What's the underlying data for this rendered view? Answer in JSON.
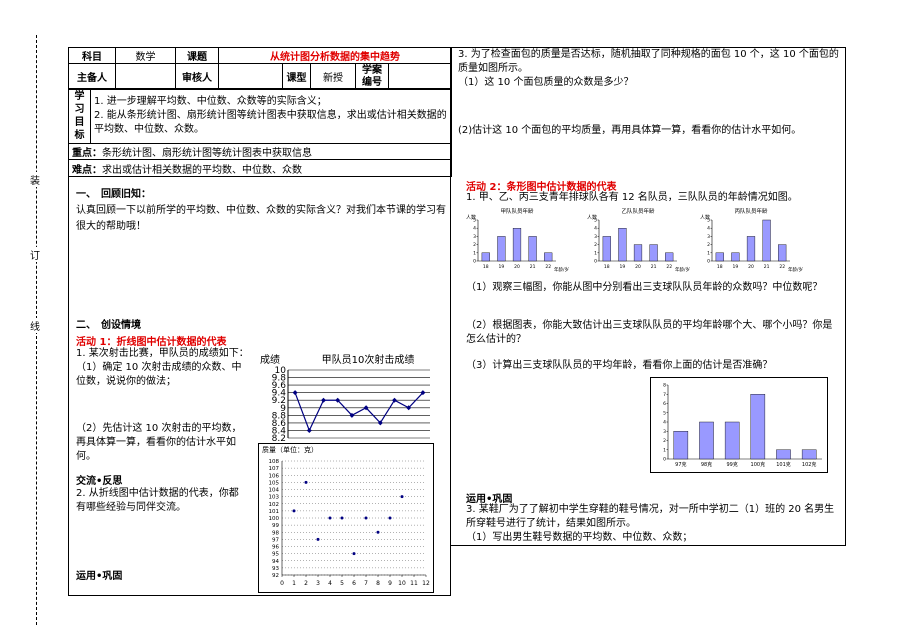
{
  "binding_marks": [
    "装",
    "订",
    "线"
  ],
  "table": {
    "subject_label": "科目",
    "subject": "数学",
    "topic_label": "课题",
    "topic": "从统计图分析数据的集中趋势",
    "preparer_label": "主备人",
    "reviewer_label": "审核人",
    "lesson_type_label": "课型",
    "lesson_type": "新授",
    "plan_no_label": "学案编号",
    "goals_label": "学习目标",
    "goals": [
      "1. 进一步理解平均数、中位数、众数等的实际含义；",
      "2. 能从条形统计图、扇形统计图等统计图表中获取信息，求出或估计相关数据的平均数、中位数、众数。"
    ],
    "key_label": "重点：",
    "key_text": "条形统计图、扇形统计图等统计图表中获取信息",
    "difficulty_label": "难点：",
    "difficulty_text": "求出或估计相关数据的平均数、中位数、众数"
  },
  "left": {
    "section1": "一、　回顾旧知：",
    "review": "认真回顾一下以前所学的平均数、中位数、众数的实际含义？对我们本节课的学习有很大的帮助哦！",
    "section2": "二、　创设情境",
    "activity1": "活动 1：折线图中估计数据的代表",
    "q1": "1. 某次射击比赛，甲队员的成绩如下：",
    "q1_1": "（1）确定 10 次射击成绩的众数、中位数，说说你的做法；",
    "q1_2": "（2）先估计这 10 次射击的平均数，再具体算一算，看看你的估计水平如何。",
    "reflect": "交流•反思",
    "q2": "2. 从折线图中估计数据的代表，你都有哪些经验与同伴交流。",
    "apply": "运用•巩固"
  },
  "right": {
    "q3": "3. 为了检查面包的质量是否达标，随机抽取了同种规格的面包 10 个，这 10 个面包的质量如图所示。",
    "q3_1": "（1）这 10 个面包质量的众数是多少？",
    "q3_2": "(2)估计这 10 个面包的平均质量，再用具体算一算，看看你的估计水平如何。",
    "activity2": "活动 2：条形图中估计数据的代表",
    "teams": "1. 甲、乙、丙三支青年排球队各有 12 名队员，三队队员的年龄情况如图。",
    "t1": "（1）观察三幅图，你能从图中分别看出三支球队队员年龄的众数吗？中位数呢？",
    "t2": "（2）根据图表，你能大致估计出三支球队队员的平均年龄哪个大、哪个小吗？你是怎么估计的？",
    "t3": "（3）计算出三支球队队员的平均年龄，看看你上面的估计是否准确？",
    "apply": "运用•巩固",
    "q4": "3. 某鞋厂为了了解初中学生穿鞋的鞋号情况，对一所中学初二（1）班的 20 名男生所穿鞋号进行了统计，结果如图所示。",
    "q4_1": "（1）写出男生鞋号数据的平均数、中位数、众数；"
  },
  "charts": {
    "line_chart": {
      "type": "line",
      "title": "甲队员10次射击成绩",
      "y_label": "成绩",
      "values": [
        9.4,
        8.4,
        9.2,
        9.2,
        8.8,
        9.0,
        8.6,
        9.2,
        9.0,
        9.4
      ],
      "color": "#000080",
      "ylim": [
        8.2,
        10
      ],
      "yticks": [
        10,
        9.8,
        9.6,
        9.4,
        9.2,
        9,
        8.8,
        8.6,
        8.4,
        8.2
      ],
      "grid": true
    },
    "scatter_chart": {
      "type": "scatter",
      "title": "质量（单位：克）",
      "x": [
        1,
        2,
        3,
        4,
        5,
        6,
        7,
        8,
        9,
        10
      ],
      "values": [
        101,
        105,
        97,
        100,
        100,
        95,
        100,
        98,
        100,
        103
      ],
      "color": "#000080",
      "xlim": [
        0,
        12
      ],
      "xticks": [
        0,
        1,
        2,
        3,
        4,
        5,
        6,
        7,
        8,
        9,
        10,
        11,
        12
      ],
      "ylim": [
        92,
        108
      ],
      "yticks": [
        108,
        107,
        106,
        105,
        104,
        103,
        102,
        101,
        100,
        99,
        98,
        97,
        96,
        95,
        94,
        93,
        92
      ],
      "grid": true
    },
    "team_charts": [
      {
        "type": "bar",
        "title": "甲队队员年龄",
        "y_label": "人数",
        "x_label": "年龄/岁",
        "categories": [
          "18",
          "19",
          "20",
          "21",
          "22"
        ],
        "values": [
          1,
          3,
          4,
          3,
          1
        ],
        "color": "#9999ff",
        "ylim": [
          0,
          5
        ],
        "yticks": [
          0,
          1,
          2,
          3,
          4,
          5
        ]
      },
      {
        "type": "bar",
        "title": "乙队队员年龄",
        "y_label": "人数",
        "x_label": "年龄/岁",
        "categories": [
          "18",
          "19",
          "20",
          "21",
          "22"
        ],
        "values": [
          3,
          4,
          2,
          2,
          1
        ],
        "color": "#9999ff",
        "ylim": [
          0,
          5
        ],
        "yticks": [
          0,
          1,
          2,
          3,
          4,
          5
        ]
      },
      {
        "type": "bar",
        "title": "丙队队员年龄",
        "y_label": "人数",
        "x_label": "年龄/岁",
        "categories": [
          "18",
          "19",
          "20",
          "21",
          "22"
        ],
        "values": [
          1,
          1,
          3,
          5,
          2
        ],
        "color": "#9999ff",
        "ylim": [
          0,
          5
        ],
        "yticks": [
          0,
          1,
          2,
          3,
          4,
          5
        ]
      }
    ],
    "size_chart": {
      "type": "bar",
      "categories": [
        "97克",
        "98克",
        "99克",
        "100克",
        "101克",
        "102克"
      ],
      "values": [
        3,
        4,
        4,
        7,
        1,
        1
      ],
      "color": "#9999ff",
      "ylim": [
        0,
        8
      ],
      "yticks": [
        0,
        1,
        2,
        3,
        4,
        5,
        6,
        7,
        8
      ]
    }
  }
}
